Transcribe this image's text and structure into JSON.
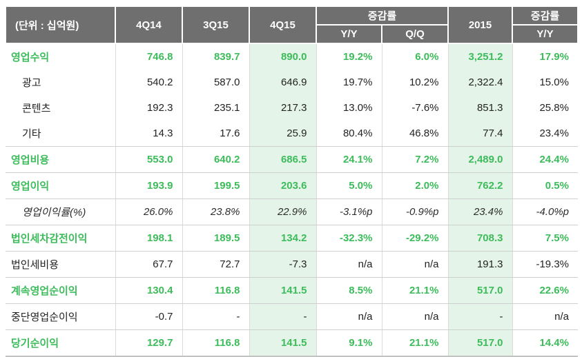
{
  "header": {
    "unit": "(단위 : 십억원)",
    "c4q14": "4Q14",
    "c3q15": "3Q15",
    "c4q15": "4Q15",
    "growth_q": "증감률",
    "yy": "Y/Y",
    "qq": "Q/Q",
    "c2015": "2015",
    "growth_y": "증감률",
    "yy2": "Y/Y"
  },
  "colors": {
    "header_bg": "#6f6f6f",
    "green_text": "#3cbc5a",
    "green_col_bg": "#e4f4e8",
    "row_line": "#cfcfcf"
  },
  "highlight_value_columns": [
    2,
    5
  ],
  "rows": [
    {
      "label": "영업수익",
      "style": "green",
      "indent": false,
      "noline": true,
      "values": [
        "746.8",
        "839.7",
        "890.0",
        "19.2%",
        "6.0%",
        "3,251.2",
        "17.9%"
      ]
    },
    {
      "label": "광고",
      "style": "normal",
      "indent": true,
      "noline": true,
      "values": [
        "540.2",
        "587.0",
        "646.9",
        "19.7%",
        "10.2%",
        "2,322.4",
        "15.0%"
      ]
    },
    {
      "label": "콘텐츠",
      "style": "normal",
      "indent": true,
      "noline": true,
      "values": [
        "192.3",
        "235.1",
        "217.3",
        "13.0%",
        "-7.6%",
        "851.3",
        "25.8%"
      ]
    },
    {
      "label": "기타",
      "style": "normal",
      "indent": true,
      "noline": false,
      "values": [
        "14.3",
        "17.6",
        "25.9",
        "80.4%",
        "46.8%",
        "77.4",
        "23.4%"
      ]
    },
    {
      "label": "영업비용",
      "style": "green",
      "indent": false,
      "noline": false,
      "values": [
        "553.0",
        "640.2",
        "686.5",
        "24.1%",
        "7.2%",
        "2,489.0",
        "24.4%"
      ]
    },
    {
      "label": "영업이익",
      "style": "green",
      "indent": false,
      "noline": false,
      "values": [
        "193.9",
        "199.5",
        "203.6",
        "5.0%",
        "2.0%",
        "762.2",
        "0.5%"
      ]
    },
    {
      "label": "영업이익률(%)",
      "style": "italic",
      "indent": true,
      "noline": false,
      "values": [
        "26.0%",
        "23.8%",
        "22.9%",
        "-3.1%p",
        "-0.9%p",
        "23.4%",
        "-4.0%p"
      ]
    },
    {
      "label": "법인세차감전이익",
      "style": "green",
      "indent": false,
      "noline": false,
      "values": [
        "198.1",
        "189.5",
        "134.2",
        "-32.3%",
        "-29.2%",
        "708.3",
        "7.5%"
      ]
    },
    {
      "label": "법인세비용",
      "style": "normal",
      "indent": false,
      "noline": false,
      "values": [
        "67.7",
        "72.7",
        "-7.3",
        "n/a",
        "n/a",
        "191.3",
        "-19.3%"
      ]
    },
    {
      "label": "계속영업순이익",
      "style": "green",
      "indent": false,
      "noline": false,
      "values": [
        "130.4",
        "116.8",
        "141.5",
        "8.5%",
        "21.1%",
        "517.0",
        "22.6%"
      ]
    },
    {
      "label": "중단영업순이익",
      "style": "normal",
      "indent": false,
      "noline": false,
      "values": [
        "-0.7",
        "-",
        "-",
        "n/a",
        "n/a",
        "-",
        "n/a"
      ]
    },
    {
      "label": "당기순이익",
      "style": "green",
      "indent": false,
      "noline": false,
      "values": [
        "129.7",
        "116.8",
        "141.5",
        "9.1%",
        "21.1%",
        "517.0",
        "14.4%"
      ]
    }
  ]
}
